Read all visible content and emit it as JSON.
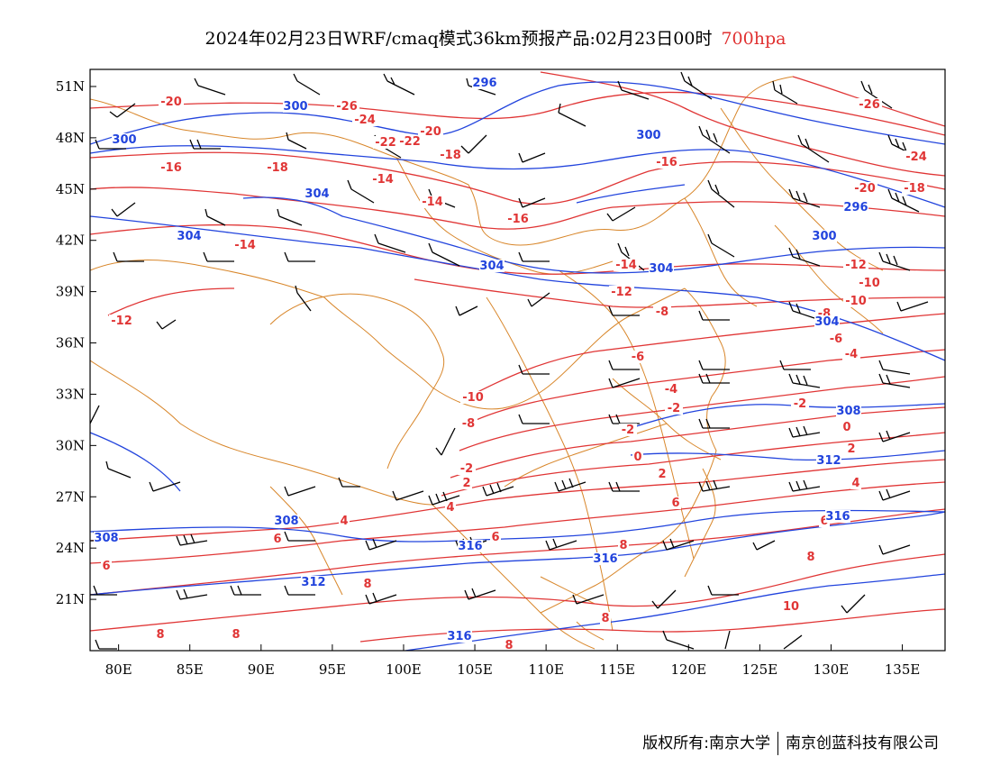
{
  "header": {
    "title": "2024年02月23日WRF/cmaq模式36km预报产品:02月23日00时",
    "level": "700hpa"
  },
  "footer": {
    "copyright": "版权所有:南京大学",
    "company": "南京创蓝科技有限公司"
  },
  "map": {
    "lon_range": [
      78,
      138
    ],
    "lat_range": [
      18,
      52
    ],
    "x_ticks": [
      "80E",
      "85E",
      "90E",
      "95E",
      "100E",
      "105E",
      "110E",
      "115E",
      "120E",
      "125E",
      "130E",
      "135E"
    ],
    "y_ticks": [
      "51N",
      "48N",
      "45N",
      "42N",
      "39N",
      "36N",
      "33N",
      "30N",
      "27N",
      "24N",
      "21N"
    ],
    "colors": {
      "temperature": "#e03535",
      "height": "#2244dd",
      "boundary": "#d8862a",
      "wind": "#000000"
    },
    "temperature_labels": [
      "-20",
      "-26",
      "-24",
      "-22",
      "-20",
      "-18",
      "-16",
      "-18",
      "-22",
      "-16",
      "-14",
      "-16",
      "-14",
      "-26",
      "-24",
      "-18",
      "-20",
      "-14",
      "-14",
      "-12",
      "-12",
      "-10",
      "-12",
      "-10",
      "-8",
      "-8",
      "-6",
      "-6",
      "-4",
      "-10",
      "-8",
      "-4",
      "-2",
      "-2",
      "-2",
      "0",
      "-2",
      "2",
      "0",
      "2",
      "2",
      "4",
      "4",
      "6",
      "6",
      "6",
      "4",
      "6",
      "8",
      "6",
      "8",
      "8",
      "8",
      "8",
      "10",
      "8",
      "8"
    ],
    "height_labels": [
      "296",
      "300",
      "300",
      "300",
      "304",
      "304",
      "304",
      "304",
      "296",
      "300",
      "304",
      "308",
      "312",
      "316",
      "308",
      "308",
      "312",
      "316",
      "316",
      "316"
    ]
  }
}
